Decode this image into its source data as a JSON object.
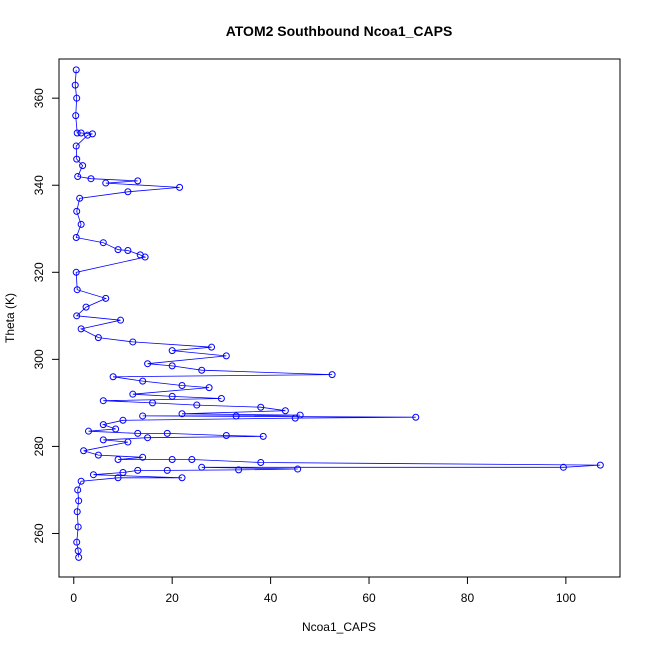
{
  "chart_data": {
    "type": "scatter",
    "title": "ATOM2 Southbound Ncoa1_CAPS",
    "xlabel": "Ncoa1_CAPS",
    "ylabel": "Theta (K)",
    "xlim": [
      -3,
      111
    ],
    "ylim": [
      250,
      369
    ],
    "xticks": [
      0,
      20,
      40,
      60,
      80,
      100
    ],
    "yticks": [
      260,
      280,
      300,
      320,
      340,
      360
    ],
    "grid": false,
    "series_color": "#0000ff",
    "line_color": "#0000ff",
    "marker": "open-circle",
    "points": [
      {
        "x": 0.5,
        "y": 366.5
      },
      {
        "x": 0.3,
        "y": 363
      },
      {
        "x": 0.6,
        "y": 360
      },
      {
        "x": 0.4,
        "y": 356
      },
      {
        "x": 0.7,
        "y": 352
      },
      {
        "x": 1.5,
        "y": 352
      },
      {
        "x": 2.8,
        "y": 351.5
      },
      {
        "x": 3.8,
        "y": 351.8
      },
      {
        "x": 0.5,
        "y": 349
      },
      {
        "x": 0.6,
        "y": 346
      },
      {
        "x": 1.8,
        "y": 344.5
      },
      {
        "x": 0.8,
        "y": 342
      },
      {
        "x": 3.5,
        "y": 341.5
      },
      {
        "x": 6.5,
        "y": 340.5
      },
      {
        "x": 13,
        "y": 341
      },
      {
        "x": 21.5,
        "y": 339.5
      },
      {
        "x": 11,
        "y": 338.5
      },
      {
        "x": 1.2,
        "y": 337
      },
      {
        "x": 0.6,
        "y": 334
      },
      {
        "x": 1.5,
        "y": 331
      },
      {
        "x": 0.5,
        "y": 328
      },
      {
        "x": 6,
        "y": 326.8
      },
      {
        "x": 11,
        "y": 325
      },
      {
        "x": 9,
        "y": 325.2
      },
      {
        "x": 13.5,
        "y": 324
      },
      {
        "x": 14.5,
        "y": 323.5
      },
      {
        "x": 0.5,
        "y": 320
      },
      {
        "x": 0.7,
        "y": 316
      },
      {
        "x": 6.5,
        "y": 314
      },
      {
        "x": 2.5,
        "y": 312
      },
      {
        "x": 0.6,
        "y": 310
      },
      {
        "x": 9.5,
        "y": 309
      },
      {
        "x": 1.5,
        "y": 307
      },
      {
        "x": 5,
        "y": 305
      },
      {
        "x": 12,
        "y": 304
      },
      {
        "x": 28,
        "y": 302.8
      },
      {
        "x": 20,
        "y": 302
      },
      {
        "x": 31,
        "y": 300.8
      },
      {
        "x": 15,
        "y": 299
      },
      {
        "x": 20,
        "y": 298.5
      },
      {
        "x": 26,
        "y": 297.5
      },
      {
        "x": 52.5,
        "y": 296.5
      },
      {
        "x": 8,
        "y": 296
      },
      {
        "x": 14,
        "y": 295
      },
      {
        "x": 22,
        "y": 294
      },
      {
        "x": 27.5,
        "y": 293.5
      },
      {
        "x": 12,
        "y": 292
      },
      {
        "x": 20,
        "y": 291.5
      },
      {
        "x": 30,
        "y": 291
      },
      {
        "x": 6,
        "y": 290.5
      },
      {
        "x": 16,
        "y": 290
      },
      {
        "x": 25,
        "y": 289.5
      },
      {
        "x": 38,
        "y": 289
      },
      {
        "x": 43,
        "y": 288.2
      },
      {
        "x": 46,
        "y": 287.2
      },
      {
        "x": 45,
        "y": 286.5
      },
      {
        "x": 69.5,
        "y": 286.7
      },
      {
        "x": 33,
        "y": 287
      },
      {
        "x": 22,
        "y": 287.5
      },
      {
        "x": 14,
        "y": 287
      },
      {
        "x": 10,
        "y": 286
      },
      {
        "x": 6,
        "y": 285
      },
      {
        "x": 8.5,
        "y": 284
      },
      {
        "x": 3,
        "y": 283.5
      },
      {
        "x": 13,
        "y": 283
      },
      {
        "x": 19,
        "y": 283
      },
      {
        "x": 31,
        "y": 282.5
      },
      {
        "x": 38.5,
        "y": 282.3
      },
      {
        "x": 6,
        "y": 281.5
      },
      {
        "x": 11,
        "y": 281
      },
      {
        "x": 15,
        "y": 282
      },
      {
        "x": 2,
        "y": 279
      },
      {
        "x": 5,
        "y": 278
      },
      {
        "x": 9,
        "y": 277
      },
      {
        "x": 14,
        "y": 277.5
      },
      {
        "x": 20,
        "y": 277
      },
      {
        "x": 24,
        "y": 277
      },
      {
        "x": 38,
        "y": 276.3
      },
      {
        "x": 107,
        "y": 275.7
      },
      {
        "x": 99.5,
        "y": 275.2
      },
      {
        "x": 45.5,
        "y": 274.8
      },
      {
        "x": 33.5,
        "y": 274.6
      },
      {
        "x": 26,
        "y": 275.2
      },
      {
        "x": 19,
        "y": 274.5
      },
      {
        "x": 13,
        "y": 274.5
      },
      {
        "x": 10,
        "y": 274
      },
      {
        "x": 22,
        "y": 272.8
      },
      {
        "x": 9,
        "y": 272.8
      },
      {
        "x": 4,
        "y": 273.5
      },
      {
        "x": 1.5,
        "y": 272
      },
      {
        "x": 0.8,
        "y": 270
      },
      {
        "x": 1.0,
        "y": 267.5
      },
      {
        "x": 0.7,
        "y": 265
      },
      {
        "x": 0.9,
        "y": 261.5
      },
      {
        "x": 0.6,
        "y": 258
      },
      {
        "x": 0.9,
        "y": 256
      },
      {
        "x": 1.0,
        "y": 254.5
      }
    ]
  }
}
